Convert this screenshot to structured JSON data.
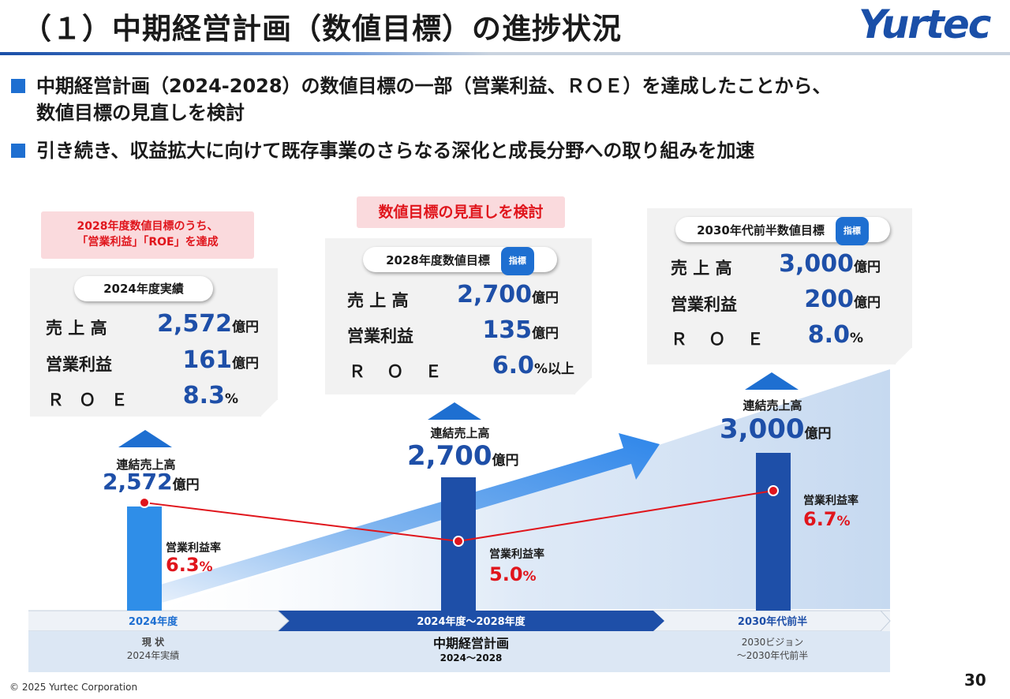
{
  "header": {
    "title": "（１）中期経営計画（数値目標）の進捗状況",
    "logo": "Yurtec"
  },
  "bullets": [
    {
      "line1": "中期経営計画（2024-2028）の数値目標の一部（営業利益、ＲＯＥ）を達成したことから、",
      "line2": "数値目標の見直しを検討"
    },
    {
      "line1": "引き続き、収益拡大に向けて既存事業のさらなる深化と成長分野への取り組みを加速"
    }
  ],
  "callouts": {
    "achieved_line1": "2028年度数値目標のうち、",
    "achieved_line2": "「営業利益」「ROE」を達成",
    "review": "数値目標の見直しを検討"
  },
  "cards": [
    {
      "title": "2024年度実績",
      "tag": "",
      "rows": [
        {
          "label": "売 上 高",
          "value": "2,572",
          "unit": "億円"
        },
        {
          "label": "営業利益",
          "value": "161",
          "unit": "億円"
        },
        {
          "label": "Ｒ Ｏ Ｅ",
          "value": "8.3",
          "unit": "%"
        }
      ]
    },
    {
      "title": "2028年度数値目標",
      "tag": "指標",
      "rows": [
        {
          "label": "売 上 高",
          "value": "2,700",
          "unit": "億円"
        },
        {
          "label": "営業利益",
          "value": "135",
          "unit": "億円"
        },
        {
          "label": "Ｒ Ｏ Ｅ",
          "value": "6.0",
          "unit": "%以上"
        }
      ]
    },
    {
      "title": "2030年代前半数値目標",
      "tag": "指標",
      "rows": [
        {
          "label": "売 上 高",
          "value": "3,000",
          "unit": "億円"
        },
        {
          "label": "営業利益",
          "value": "200",
          "unit": "億円"
        },
        {
          "label": "Ｒ Ｏ Ｅ",
          "value": "8.0",
          "unit": "%"
        }
      ]
    }
  ],
  "chart_data": {
    "type": "bar",
    "categories": [
      "2024年度",
      "2024年度〜2028年度",
      "2030年代前半"
    ],
    "series": [
      {
        "name": "連結売上高",
        "values": [
          2572,
          2700,
          3000
        ],
        "unit": "億円"
      },
      {
        "name": "営業利益率",
        "values": [
          6.3,
          5.0,
          6.7
        ],
        "unit": "%"
      }
    ],
    "value_labels": [
      "2,572",
      "2,700",
      "3,000"
    ],
    "value_unit": "億円",
    "rate_labels": [
      "6.3",
      "5.0",
      "6.7"
    ],
    "rate_unit": "%",
    "sales_caption": "連結売上高",
    "rate_caption": "営業利益率",
    "bar_color": "#1e4fa8",
    "line_color": "#e0151c"
  },
  "timeline": {
    "segments": [
      "2024年度",
      "2024年度〜2028年度",
      "2030年代前半"
    ],
    "colors": {
      "current": "#ffffff",
      "plan": "#1e4fa8",
      "vision": "#ffffff"
    }
  },
  "phases": [
    {
      "title": "現 状",
      "sub": "2024年実績"
    },
    {
      "title": "中期経営計画",
      "sub": "2024〜2028"
    },
    {
      "title": "2030ビジョン",
      "sub": "〜2030年代前半"
    }
  ],
  "footer": {
    "copyright": "© 2025 Yurtec Corporation",
    "page": "30"
  }
}
